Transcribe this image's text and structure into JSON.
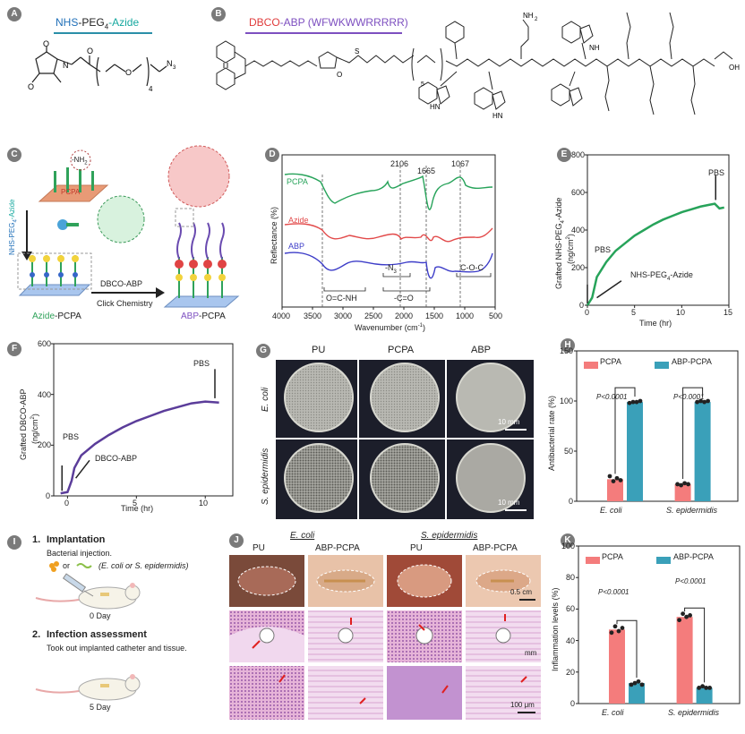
{
  "colors": {
    "green": "#27a35a",
    "red": "#e24a4a",
    "blue": "#3d3dc8",
    "purple": "#5b3d9a",
    "pcpa_bar": "#f47c7c",
    "abp_bar": "#3aa0b9",
    "cyan_title": "#16a3b8",
    "dbco_red": "#e03c3c",
    "abp_purple": "#7d4fc0"
  },
  "panelA": {
    "letter": "A",
    "title_nhs": "NHS",
    "title_mid": "-PEG",
    "title_sub": "4",
    "title_azide": "-Azide",
    "o1": "O",
    "o2": "O",
    "n": "N",
    "o3": "O",
    "o4": "O",
    "sub": "4",
    "n3": "N",
    "n3sub": "3"
  },
  "panelB": {
    "letter": "B",
    "title_dbco": "DBCO",
    "title_abp": "-ABP (WFWKWWRRRRR)",
    "sub5": "5",
    "nh2": "NH",
    "nh2sub": "2",
    "oh": "OH",
    "hn": "HN",
    "nh": "NH",
    "h2n": "H",
    "n": "N",
    "o": "O",
    "s": "S",
    "hn2": "HN"
  },
  "panelC": {
    "letter": "C",
    "nh2_label": "-NH",
    "nh2_sub": "2",
    "pcpa_label": "PCPA",
    "nhs_peg": "NHS-PEG",
    "nhs_sub": "4",
    "azide_word": "-Azide",
    "arrow_label1": "DBCO-ABP",
    "arrow_label2": "Click Chemistry",
    "azide_pcpa_1": "Azide",
    "azide_pcpa_2": "-PCPA",
    "abp_pcpa_1": "ABP",
    "abp_pcpa_2": "-PCPA"
  },
  "panelD": {
    "letter": "D",
    "ylabel": "Reflectance (%)",
    "xlabel": "Wavenumber (cm",
    "xlabel_sup": "-1",
    "xlabel_end": ")",
    "series": [
      "PCPA",
      "Azide",
      "ABP"
    ],
    "peaks": [
      "2106",
      "1665",
      "1067"
    ],
    "bands": [
      "O=C-NH",
      "-N",
      "-C=O",
      "C-O-C"
    ],
    "band_n_sub": "3",
    "ticks": [
      "4000",
      "3500",
      "3000",
      "2500",
      "2000",
      "1500",
      "1000",
      "500"
    ]
  },
  "panelE": {
    "letter": "E",
    "ylabel1": "Grafted NHS-PEG",
    "ylabel_sub": "4",
    "ylabel2": "-Azide",
    "ylabel3": "(ng/cm",
    "ylabel_sup": "2",
    "ylabel4": ")",
    "xlabel": "Time (hr)",
    "pbs1": "PBS",
    "pbs2": "PBS",
    "inj": "NHS-PEG",
    "inj_sub": "4",
    "inj_end": "-Azide",
    "yticks": [
      "0",
      "200",
      "400",
      "600",
      "800"
    ],
    "xticks": [
      "0",
      "5",
      "10",
      "15"
    ]
  },
  "panelF": {
    "letter": "F",
    "ylabel1": "Grafted DBCO-ABP",
    "ylabel2": "(ng/cm",
    "ylabel_sup": "2",
    "ylabel3": ")",
    "xlabel": "Time (hr)",
    "pbs1": "PBS",
    "pbs2": "PBS",
    "inj": "DBCO-ABP",
    "yticks": [
      "0",
      "200",
      "400",
      "600"
    ],
    "xticks": [
      "0",
      "5",
      "10"
    ]
  },
  "panelG": {
    "letter": "G",
    "cols": [
      "PU",
      "PCPA",
      "ABP"
    ],
    "rows": [
      "E. coli",
      "S. epidermidis"
    ],
    "scale": "10 mm"
  },
  "panelH": {
    "letter": "H",
    "legend": [
      "PCPA",
      "ABP-PCPA"
    ],
    "ylabel": "Antibacterial rate (%)",
    "yticks": [
      "0",
      "50",
      "100",
      "150"
    ],
    "groups": [
      "E. coli",
      "S. epidermidis"
    ],
    "pvals": [
      "P<0.0001",
      "P<0.0001"
    ]
  },
  "panelI": {
    "letter": "I",
    "step1_num": "1.",
    "step1_title": "Implantation",
    "step1_desc": "Bacterial injection.",
    "step1_or": "or",
    "step1_paren": "(E. coli or S. epidermidis)",
    "day0": "0 Day",
    "step2_num": "2.",
    "step2_title": "Infection assessment",
    "step2_desc": "Took out implanted catheter and tissue.",
    "day5": "5 Day"
  },
  "panelJ": {
    "letter": "J",
    "group1": "E. coli",
    "group2": "S. epidermidis",
    "cols": [
      "PU",
      "ABP-PCPA",
      "PU",
      "ABP-PCPA"
    ],
    "scale1": "0.5 cm",
    "scale2": "mm",
    "scale3": "100 μm"
  },
  "panelK": {
    "letter": "K",
    "legend": [
      "PCPA",
      "ABP-PCPA"
    ],
    "ylabel": "Inflammation levels (%)",
    "yticks": [
      "0",
      "20",
      "40",
      "60",
      "80",
      "100"
    ],
    "groups": [
      "E. coli",
      "S. epidermidis"
    ],
    "pvals": [
      "P<0.0001",
      "P<0.0001"
    ]
  },
  "chart_data": [
    {
      "type": "line",
      "id": "D",
      "title": "",
      "xlabel": "Wavenumber (cm-1)",
      "ylabel": "Reflectance (%)",
      "xlim": [
        4000,
        500
      ],
      "series": [
        {
          "name": "PCPA"
        },
        {
          "name": "Azide"
        },
        {
          "name": "ABP"
        }
      ]
    },
    {
      "type": "line",
      "id": "E",
      "xlabel": "Time (hr)",
      "ylabel": "Grafted NHS-PEG4-Azide (ng/cm2)",
      "xlim": [
        0,
        15
      ],
      "ylim": [
        0,
        800
      ],
      "series": [
        {
          "x": [
            0,
            0.5,
            1,
            2,
            3,
            4,
            5,
            6,
            7,
            8,
            9,
            10,
            11,
            12,
            13,
            13.5,
            14,
            14.5
          ],
          "y": [
            0,
            40,
            150,
            230,
            290,
            330,
            370,
            400,
            430,
            455,
            475,
            495,
            510,
            525,
            535,
            540,
            515,
            520
          ]
        }
      ]
    },
    {
      "type": "line",
      "id": "F",
      "xlabel": "Time (hr)",
      "ylabel": "Grafted DBCO-ABP (ng/cm2)",
      "xlim": [
        -1,
        12
      ],
      "ylim": [
        0,
        600
      ],
      "series": [
        {
          "x": [
            -0.5,
            0,
            0.3,
            0.5,
            1,
            2,
            3,
            4,
            5,
            6,
            7,
            8,
            9,
            10,
            11
          ],
          "y": [
            10,
            15,
            60,
            110,
            160,
            205,
            240,
            270,
            295,
            315,
            335,
            350,
            365,
            372,
            368
          ]
        }
      ]
    },
    {
      "type": "bar",
      "id": "H",
      "categories": [
        "E. coli",
        "S. epidermidis"
      ],
      "ylim": [
        0,
        150
      ],
      "ylabel": "Antibacterial rate (%)",
      "series": [
        {
          "name": "PCPA",
          "values": [
            22,
            17
          ],
          "points": [
            [
              25,
              20,
              23,
              21
            ],
            [
              17,
              16,
              18,
              17
            ]
          ]
        },
        {
          "name": "ABP-PCPA",
          "values": [
            99,
            99
          ],
          "points": [
            [
              98,
              99,
              99,
              100
            ],
            [
              99,
              100,
              99,
              100
            ]
          ]
        }
      ]
    },
    {
      "type": "bar",
      "id": "K",
      "categories": [
        "E. coli",
        "S. epidermidis"
      ],
      "ylim": [
        0,
        100
      ],
      "ylabel": "Inflammation levels (%)",
      "series": [
        {
          "name": "PCPA",
          "values": [
            47,
            55
          ],
          "points": [
            [
              45,
              49,
              46,
              48
            ],
            [
              53,
              57,
              55,
              56
            ]
          ]
        },
        {
          "name": "ABP-PCPA",
          "values": [
            13,
            10
          ],
          "points": [
            [
              12,
              13,
              14,
              12
            ],
            [
              10,
              11,
              10,
              10
            ]
          ]
        }
      ]
    }
  ]
}
